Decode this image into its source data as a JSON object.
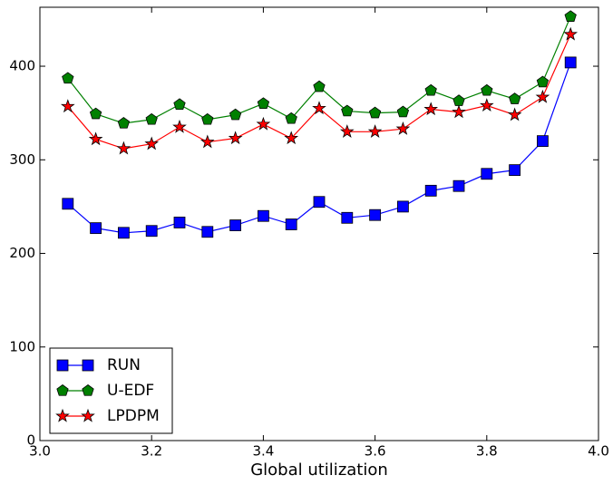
{
  "chart_data": {
    "type": "line",
    "xlabel": "Global utilization",
    "x": [
      3.05,
      3.1,
      3.15,
      3.2,
      3.25,
      3.3,
      3.35,
      3.4,
      3.45,
      3.5,
      3.55,
      3.6,
      3.65,
      3.7,
      3.75,
      3.8,
      3.85,
      3.9,
      3.95
    ],
    "series": [
      {
        "name": "RUN",
        "color": "#0000ff",
        "marker": "square",
        "values": [
          253,
          227,
          222,
          224,
          233,
          223,
          230,
          240,
          231,
          255,
          238,
          241,
          250,
          267,
          272,
          285,
          289,
          320,
          404
        ]
      },
      {
        "name": "U-EDF",
        "color": "#008000",
        "marker": "pentagon",
        "values": [
          387,
          349,
          339,
          343,
          359,
          343,
          348,
          360,
          344,
          378,
          352,
          350,
          351,
          374,
          363,
          374,
          365,
          383,
          453
        ]
      },
      {
        "name": "LPDPM",
        "color": "#ff0000",
        "marker": "star",
        "values": [
          357,
          322,
          312,
          317,
          335,
          319,
          323,
          338,
          323,
          355,
          330,
          330,
          333,
          354,
          351,
          358,
          348,
          367,
          434
        ]
      }
    ],
    "xlim": [
      3,
      4
    ],
    "xticks": [
      {
        "value": 3,
        "label": "3.0"
      },
      3.2,
      3.4,
      3.6,
      3.8,
      {
        "value": 4,
        "label": "4.0"
      }
    ],
    "ylim": [
      0,
      463
    ],
    "yticks": [
      0,
      100,
      200,
      300,
      400
    ],
    "legend": "lower left"
  }
}
